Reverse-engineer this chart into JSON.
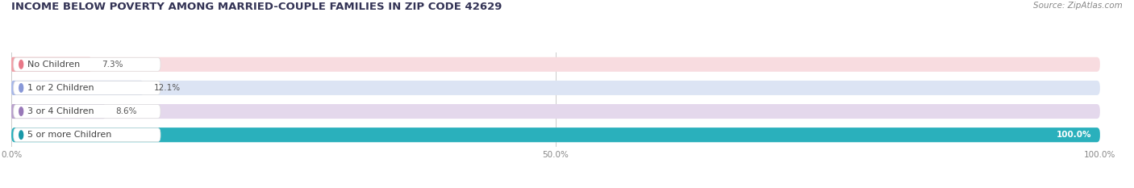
{
  "title": "INCOME BELOW POVERTY AMONG MARRIED-COUPLE FAMILIES IN ZIP CODE 42629",
  "source": "Source: ZipAtlas.com",
  "categories": [
    "No Children",
    "1 or 2 Children",
    "3 or 4 Children",
    "5 or more Children"
  ],
  "values": [
    7.3,
    12.1,
    8.6,
    100.0
  ],
  "bar_colors": [
    "#f0a0a8",
    "#a8b8e8",
    "#b8a0cc",
    "#2ab0bc"
  ],
  "bg_colors": [
    "#f8dce0",
    "#dce4f4",
    "#e4d8ec",
    "#cceef2"
  ],
  "dot_colors": [
    "#e87888",
    "#8898d8",
    "#9878b8",
    "#1898a8"
  ],
  "value_label_colors": [
    "#666666",
    "#666666",
    "#666666",
    "#ffffff"
  ],
  "xlim": [
    0,
    100
  ],
  "xticks": [
    0.0,
    50.0,
    100.0
  ],
  "xtick_labels": [
    "0.0%",
    "50.0%",
    "100.0%"
  ],
  "bar_height": 0.62,
  "figsize": [
    14.06,
    2.33
  ],
  "dpi": 100
}
